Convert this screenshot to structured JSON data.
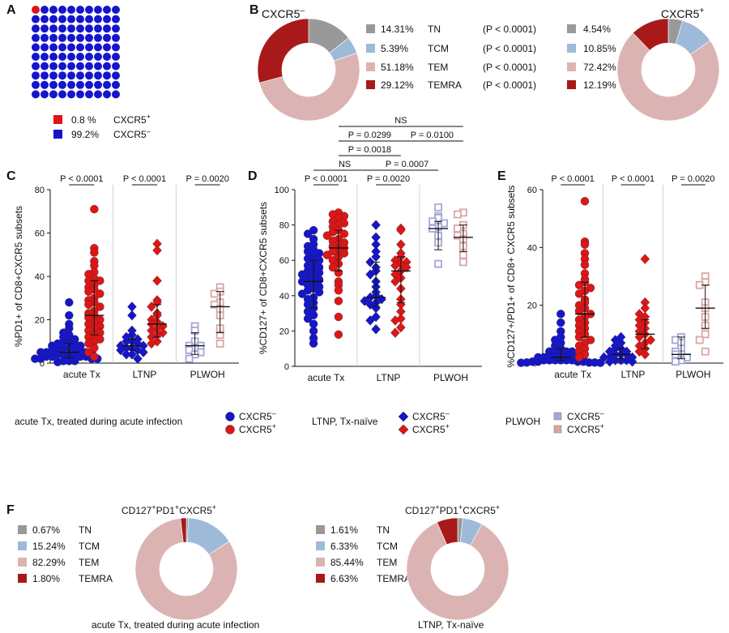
{
  "colors": {
    "cxcr5_neg": "#1515cc",
    "cxcr5_pos": "#e01515",
    "tn": "#999999",
    "tcm": "#9dbad9",
    "tem": "#dcb3b3",
    "temra": "#a81a1a",
    "plwoh_neg": "#a6a6d8",
    "plwoh_pos": "#d9a6a6"
  },
  "panel_labels": {
    "a": "A",
    "b": "B",
    "c": "C",
    "d": "D",
    "e": "E",
    "f": "F"
  },
  "panel_a": {
    "grid_total": 100,
    "positive_count": 1,
    "legend": [
      {
        "pct": "0.8 %",
        "label": "CXCR5",
        "sup": "+"
      },
      {
        "pct": "99.2%",
        "label": "CXCR5",
        "sup": "–"
      }
    ]
  },
  "panel_b": {
    "left_title": "CXCR5",
    "left_sup": "–",
    "right_title": "CXCR5",
    "right_sup": "+",
    "rows": [
      {
        "name": "TN",
        "left_pct": "14.31%",
        "p": "(P < 0.0001)",
        "right_pct": "4.54%"
      },
      {
        "name": "TCM",
        "left_pct": "5.39%",
        "p": "(P < 0.0001)",
        "right_pct": "10.85%"
      },
      {
        "name": "TEM",
        "left_pct": "51.18%",
        "p": "(P < 0.0001)",
        "right_pct": "72.42%"
      },
      {
        "name": "TEMRA",
        "left_pct": "29.12%",
        "p": "(P < 0.0001)",
        "right_pct": "12.19%"
      }
    ]
  },
  "legend_groups": [
    {
      "label": "acute Tx, treated during acute infection",
      "neg": "CXCR5",
      "pos": "CXCR5",
      "neg_sup": "–",
      "pos_sup": "+"
    },
    {
      "label": "LTNP, Tx-naïve",
      "neg": "CXCR5",
      "pos": "CXCR5",
      "neg_sup": "–",
      "pos_sup": "+"
    },
    {
      "label": "PLWOH",
      "neg": "CXCR5",
      "pos": "CXCR5",
      "neg_sup": "–",
      "pos_sup": "+"
    }
  ],
  "panel_f_texts": {
    "left_title": "CD127+PD1+CXCR5+",
    "right_title": "CD127+PD1+CXCR5+",
    "left_caption": "acute Tx, treated during acute infection",
    "right_caption": "LTNP, Tx-naïve"
  },
  "chart_data": [
    {
      "id": "A",
      "type": "waffle",
      "categories": [
        "CXCR5+",
        "CXCR5-"
      ],
      "values": [
        0.8,
        99.2
      ]
    },
    {
      "id": "B",
      "type": "pie",
      "title": "CXCR5-",
      "categories": [
        "TN",
        "TCM",
        "TEM",
        "TEMRA"
      ],
      "values": [
        14.31,
        5.39,
        51.18,
        29.12
      ]
    },
    {
      "id": "B2",
      "type": "pie",
      "title": "CXCR5+",
      "categories": [
        "TN",
        "TCM",
        "TEM",
        "TEMRA"
      ],
      "values": [
        4.54,
        10.85,
        72.42,
        12.19
      ]
    },
    {
      "id": "C",
      "type": "scatter",
      "ylabel": "%PD1+ of CD8+CXCR5 subsets",
      "ylim": [
        0,
        80
      ],
      "yticks": [
        0,
        20,
        40,
        60,
        80
      ],
      "categories": [
        "acute Tx",
        "LTNP",
        "PLWOH"
      ],
      "groups": [
        {
          "cat": 0,
          "subset": "neg",
          "median": 5,
          "q1": 2.5,
          "q3": 9,
          "values": [
            28,
            22,
            18,
            16,
            14,
            13,
            12,
            11,
            10,
            10,
            9,
            9,
            8,
            8,
            7,
            7,
            7,
            6,
            6,
            6,
            5,
            5,
            5,
            5,
            4,
            4,
            4,
            4,
            3,
            3,
            3,
            3,
            2,
            2,
            2,
            2,
            1,
            1,
            1,
            0.5
          ]
        },
        {
          "cat": 0,
          "subset": "pos",
          "median": 22,
          "q1": 13,
          "q3": 38,
          "values": [
            71,
            53,
            51,
            47,
            45,
            42,
            41,
            39,
            38,
            38,
            36,
            35,
            34,
            33,
            32,
            30,
            29,
            28,
            27,
            26,
            24,
            23,
            22,
            21,
            20,
            19,
            18,
            17,
            16,
            15,
            14,
            13,
            12,
            11,
            10,
            9,
            7,
            5,
            3
          ]
        },
        {
          "cat": 1,
          "subset": "neg",
          "median": 8,
          "q1": 6,
          "q3": 11,
          "values": [
            26,
            22,
            15,
            13,
            12,
            11,
            10,
            10,
            9,
            8,
            8,
            7,
            7,
            6,
            6,
            5,
            4,
            4,
            2
          ]
        },
        {
          "cat": 1,
          "subset": "pos",
          "median": 18,
          "q1": 12,
          "q3": 27,
          "values": [
            55,
            52,
            38,
            29,
            28,
            26,
            23,
            22,
            20,
            19,
            18,
            17,
            16,
            15,
            14,
            13,
            12,
            10,
            9
          ]
        },
        {
          "cat": 2,
          "subset": "neg",
          "median": 8,
          "q1": 4,
          "q3": 14,
          "values": [
            17,
            15,
            10,
            8,
            8,
            7,
            6,
            5,
            4,
            2
          ]
        },
        {
          "cat": 2,
          "subset": "pos",
          "median": 26,
          "q1": 14,
          "q3": 33,
          "values": [
            35,
            33,
            32,
            28,
            27,
            25,
            22,
            16,
            13,
            9
          ]
        }
      ],
      "pvalues": [
        {
          "from": 0,
          "to": 1,
          "level": 0,
          "text": "P < 0.0001"
        },
        {
          "from": 2,
          "to": 3,
          "level": 0,
          "text": "P < 0.0001"
        },
        {
          "from": 4,
          "to": 5,
          "level": 0,
          "text": "P = 0.0020"
        }
      ]
    },
    {
      "id": "D",
      "type": "scatter",
      "ylabel": "%CD127+ of CD8+CXCR5 subsets",
      "ylim": [
        0,
        100
      ],
      "yticks": [
        0,
        20,
        40,
        60,
        80,
        100
      ],
      "categories": [
        "acute Tx",
        "LTNP",
        "PLWOH"
      ],
      "groups": [
        {
          "cat": 0,
          "subset": "neg",
          "median": 48,
          "q1": 33,
          "q3": 60,
          "values": [
            77,
            75,
            72,
            69,
            68,
            66,
            65,
            64,
            62,
            61,
            60,
            58,
            57,
            56,
            55,
            54,
            53,
            52,
            51,
            50,
            49,
            48,
            47,
            46,
            45,
            44,
            43,
            42,
            41,
            39,
            38,
            36,
            35,
            33,
            31,
            29,
            27,
            24,
            20,
            16,
            13
          ]
        },
        {
          "cat": 0,
          "subset": "pos",
          "median": 67,
          "q1": 54,
          "q3": 77,
          "values": [
            87,
            86,
            85,
            84,
            82,
            81,
            80,
            79,
            77,
            76,
            75,
            74,
            72,
            71,
            70,
            69,
            68,
            67,
            66,
            65,
            64,
            63,
            62,
            60,
            58,
            56,
            53,
            48,
            46,
            43,
            37,
            28,
            18
          ]
        },
        {
          "cat": 1,
          "subset": "neg",
          "median": 39,
          "q1": 34,
          "q3": 59,
          "values": [
            80,
            73,
            69,
            65,
            62,
            59,
            56,
            54,
            52,
            48,
            45,
            42,
            40,
            39,
            38,
            37,
            36,
            35,
            33,
            28,
            26,
            21
          ]
        },
        {
          "cat": 1,
          "subset": "pos",
          "median": 54,
          "q1": 36,
          "q3": 62,
          "values": [
            78,
            77,
            69,
            64,
            62,
            60,
            59,
            58,
            57,
            56,
            54,
            52,
            50,
            48,
            44,
            38,
            35,
            31,
            27,
            26,
            22,
            19
          ]
        },
        {
          "cat": 2,
          "subset": "neg",
          "median": 78,
          "q1": 66,
          "q3": 82,
          "values": [
            90,
            85,
            84,
            82,
            81,
            79,
            78,
            74,
            70,
            58
          ]
        },
        {
          "cat": 2,
          "subset": "pos",
          "median": 73,
          "q1": 65,
          "q3": 80,
          "values": [
            87,
            86,
            80,
            78,
            75,
            74,
            72,
            68,
            63,
            59
          ]
        }
      ],
      "pvalues": [
        {
          "from": 0,
          "to": 1,
          "level": 0,
          "text": "P < 0.0001"
        },
        {
          "from": 2,
          "to": 3,
          "level": 0,
          "text": "P = 0.0020"
        },
        {
          "from": 0,
          "to": 2,
          "level": 1,
          "text": "NS"
        },
        {
          "from": 2,
          "to": 4,
          "level": 1,
          "text": "P = 0.0007"
        },
        {
          "from": 1,
          "to": 3,
          "level": 2,
          "text": "P = 0.0018"
        },
        {
          "from": 1,
          "to": 3,
          "level": 3,
          "text": "P = 0.0299"
        },
        {
          "from": 3,
          "to": 5,
          "level": 3,
          "text": "P = 0.0100"
        },
        {
          "from": 1,
          "to": 5,
          "level": 4,
          "text": "NS"
        }
      ]
    },
    {
      "id": "E",
      "type": "scatter",
      "ylabel": "%CD127+/PD1+ of CD8+ CXCR5 subsets",
      "ylim": [
        0,
        60
      ],
      "yticks": [
        0,
        20,
        40,
        60
      ],
      "categories": [
        "acute Tx",
        "LTNP",
        "PLWOH"
      ],
      "groups": [
        {
          "cat": 0,
          "subset": "neg",
          "median": 2,
          "q1": 1,
          "q3": 5,
          "values": [
            17,
            14,
            11,
            9,
            8,
            7,
            6,
            5,
            5,
            4,
            4,
            4,
            3,
            3,
            3,
            3,
            2,
            2,
            2,
            2,
            2,
            1,
            1,
            1,
            1,
            1,
            1,
            0.5,
            0.5,
            0.5,
            0.5,
            0.2,
            0.2,
            0.2,
            0.1,
            0.1
          ]
        },
        {
          "cat": 0,
          "subset": "pos",
          "median": 17,
          "q1": 9,
          "q3": 28,
          "values": [
            56,
            42,
            41,
            38,
            36,
            34,
            31,
            29,
            28,
            27,
            26,
            25,
            24,
            22,
            21,
            20,
            19,
            18,
            17,
            16,
            15,
            14,
            13,
            12,
            11,
            10,
            9,
            8,
            7,
            6,
            5,
            4,
            3,
            2
          ]
        },
        {
          "cat": 1,
          "subset": "neg",
          "median": 3,
          "q1": 1.5,
          "q3": 5,
          "values": [
            9,
            8,
            7,
            6,
            5,
            5,
            4,
            4,
            3,
            3,
            3,
            2,
            2,
            2,
            1,
            1,
            1,
            0.5,
            0.5
          ]
        },
        {
          "cat": 1,
          "subset": "pos",
          "median": 10,
          "q1": 5,
          "q3": 15,
          "values": [
            36,
            21,
            19,
            17,
            16,
            15,
            14,
            13,
            12,
            11,
            10,
            9,
            8,
            7,
            6,
            5,
            4,
            3
          ]
        },
        {
          "cat": 2,
          "subset": "neg",
          "median": 3,
          "q1": 1.5,
          "q3": 9,
          "values": [
            9,
            8,
            7,
            5,
            4,
            3,
            3,
            2,
            1,
            0.5
          ]
        },
        {
          "cat": 2,
          "subset": "pos",
          "median": 19,
          "q1": 12,
          "q3": 27,
          "values": [
            30,
            28,
            27,
            21,
            19,
            16,
            13,
            10,
            8,
            4
          ]
        }
      ],
      "pvalues": [
        {
          "from": 0,
          "to": 1,
          "level": 0,
          "text": "P < 0.0001"
        },
        {
          "from": 2,
          "to": 3,
          "level": 0,
          "text": "P < 0.0001"
        },
        {
          "from": 4,
          "to": 5,
          "level": 0,
          "text": "P = 0.0020"
        }
      ]
    },
    {
      "id": "F1",
      "type": "pie",
      "title": "CD127+PD1+CXCR5+",
      "caption": "acute Tx, treated during acute infection",
      "categories": [
        "TN",
        "TCM",
        "TEM",
        "TEMRA"
      ],
      "labels": [
        "0.67%",
        "15.24%",
        "82.29%",
        "1.80%"
      ],
      "values": [
        0.67,
        15.24,
        82.29,
        1.8
      ]
    },
    {
      "id": "F2",
      "type": "pie",
      "title": "CD127+PD1+CXCR5+",
      "caption": "LTNP, Tx-naïve",
      "categories": [
        "TN",
        "TCM",
        "TEM",
        "TEMRA"
      ],
      "labels": [
        "1.61%",
        "6.33%",
        "85.44%",
        "6.63%"
      ],
      "values": [
        1.61,
        6.33,
        85.44,
        6.63
      ]
    }
  ]
}
